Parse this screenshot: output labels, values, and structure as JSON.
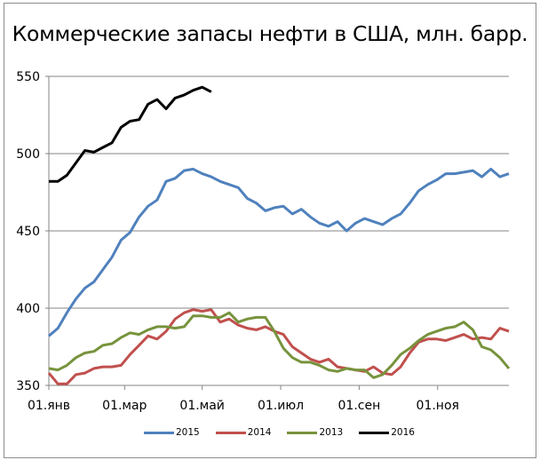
{
  "chart_data": {
    "type": "line",
    "title": "Коммерческие запасы нефти в США, млн. барр.",
    "xlabel": "",
    "ylabel": "",
    "ylim": [
      350,
      550
    ],
    "yticks": [
      350,
      400,
      450,
      500,
      550
    ],
    "ytick_labels": [
      "350",
      "400",
      "450",
      "500",
      "550"
    ],
    "x_tick_labels": [
      "01.янв",
      "01.мар",
      "01.май",
      "01.июл",
      "01.сен",
      "01.ноя"
    ],
    "x_tick_weeks": [
      0,
      8.4,
      17,
      25.7,
      34.4,
      43.1
    ],
    "x_unit": "week of year (0 = 01.янв, 51 = late Dec)",
    "grid": "horizontal major gridlines",
    "legend_position": "bottom",
    "legend": [
      "2015",
      "2014",
      "2013",
      "2016"
    ],
    "series": [
      {
        "name": "2015",
        "color": "#4f81bd",
        "values": [
          382,
          387,
          397,
          406,
          413,
          417,
          425,
          433,
          444,
          449,
          459,
          466,
          470,
          482,
          484,
          489,
          490,
          487,
          485,
          482,
          480,
          478,
          471,
          468,
          463,
          465,
          466,
          461,
          464,
          459,
          455,
          453,
          456,
          450,
          455,
          458,
          456,
          454,
          458,
          461,
          468,
          476,
          480,
          483,
          487,
          487,
          488,
          489,
          485,
          490,
          485,
          487
        ]
      },
      {
        "name": "2014",
        "color": "#c0504d",
        "values": [
          358,
          351,
          351,
          357,
          358,
          361,
          362,
          362,
          363,
          370,
          376,
          382,
          380,
          385,
          393,
          397,
          399,
          398,
          399,
          391,
          393,
          389,
          387,
          386,
          388,
          385,
          383,
          375,
          371,
          367,
          365,
          367,
          362,
          361,
          360,
          359,
          362,
          358,
          357,
          362,
          371,
          378,
          380,
          380,
          379,
          381,
          383,
          380,
          381,
          380,
          387,
          385
        ]
      },
      {
        "name": "2013",
        "color": "#77933c",
        "values": [
          361,
          360,
          363,
          368,
          371,
          372,
          376,
          377,
          381,
          384,
          383,
          386,
          388,
          388,
          387,
          388,
          395,
          395,
          394,
          394,
          397,
          391,
          393,
          394,
          394,
          385,
          374,
          368,
          365,
          365,
          363,
          360,
          359,
          361,
          360,
          360,
          355,
          357,
          363,
          370,
          374,
          379,
          383,
          385,
          387,
          388,
          391,
          386,
          375,
          373,
          368,
          361
        ]
      },
      {
        "name": "2016",
        "color": "#000000",
        "values": [
          482,
          482,
          486,
          494,
          502,
          501,
          504,
          507,
          517,
          521,
          522,
          532,
          535,
          529,
          536,
          538,
          541,
          543,
          540
        ]
      }
    ]
  },
  "legend_items": [
    {
      "label": "2015",
      "color": "#4f81bd"
    },
    {
      "label": "2014",
      "color": "#c0504d"
    },
    {
      "label": "2013",
      "color": "#77933c"
    },
    {
      "label": "2016",
      "color": "#000000"
    }
  ]
}
